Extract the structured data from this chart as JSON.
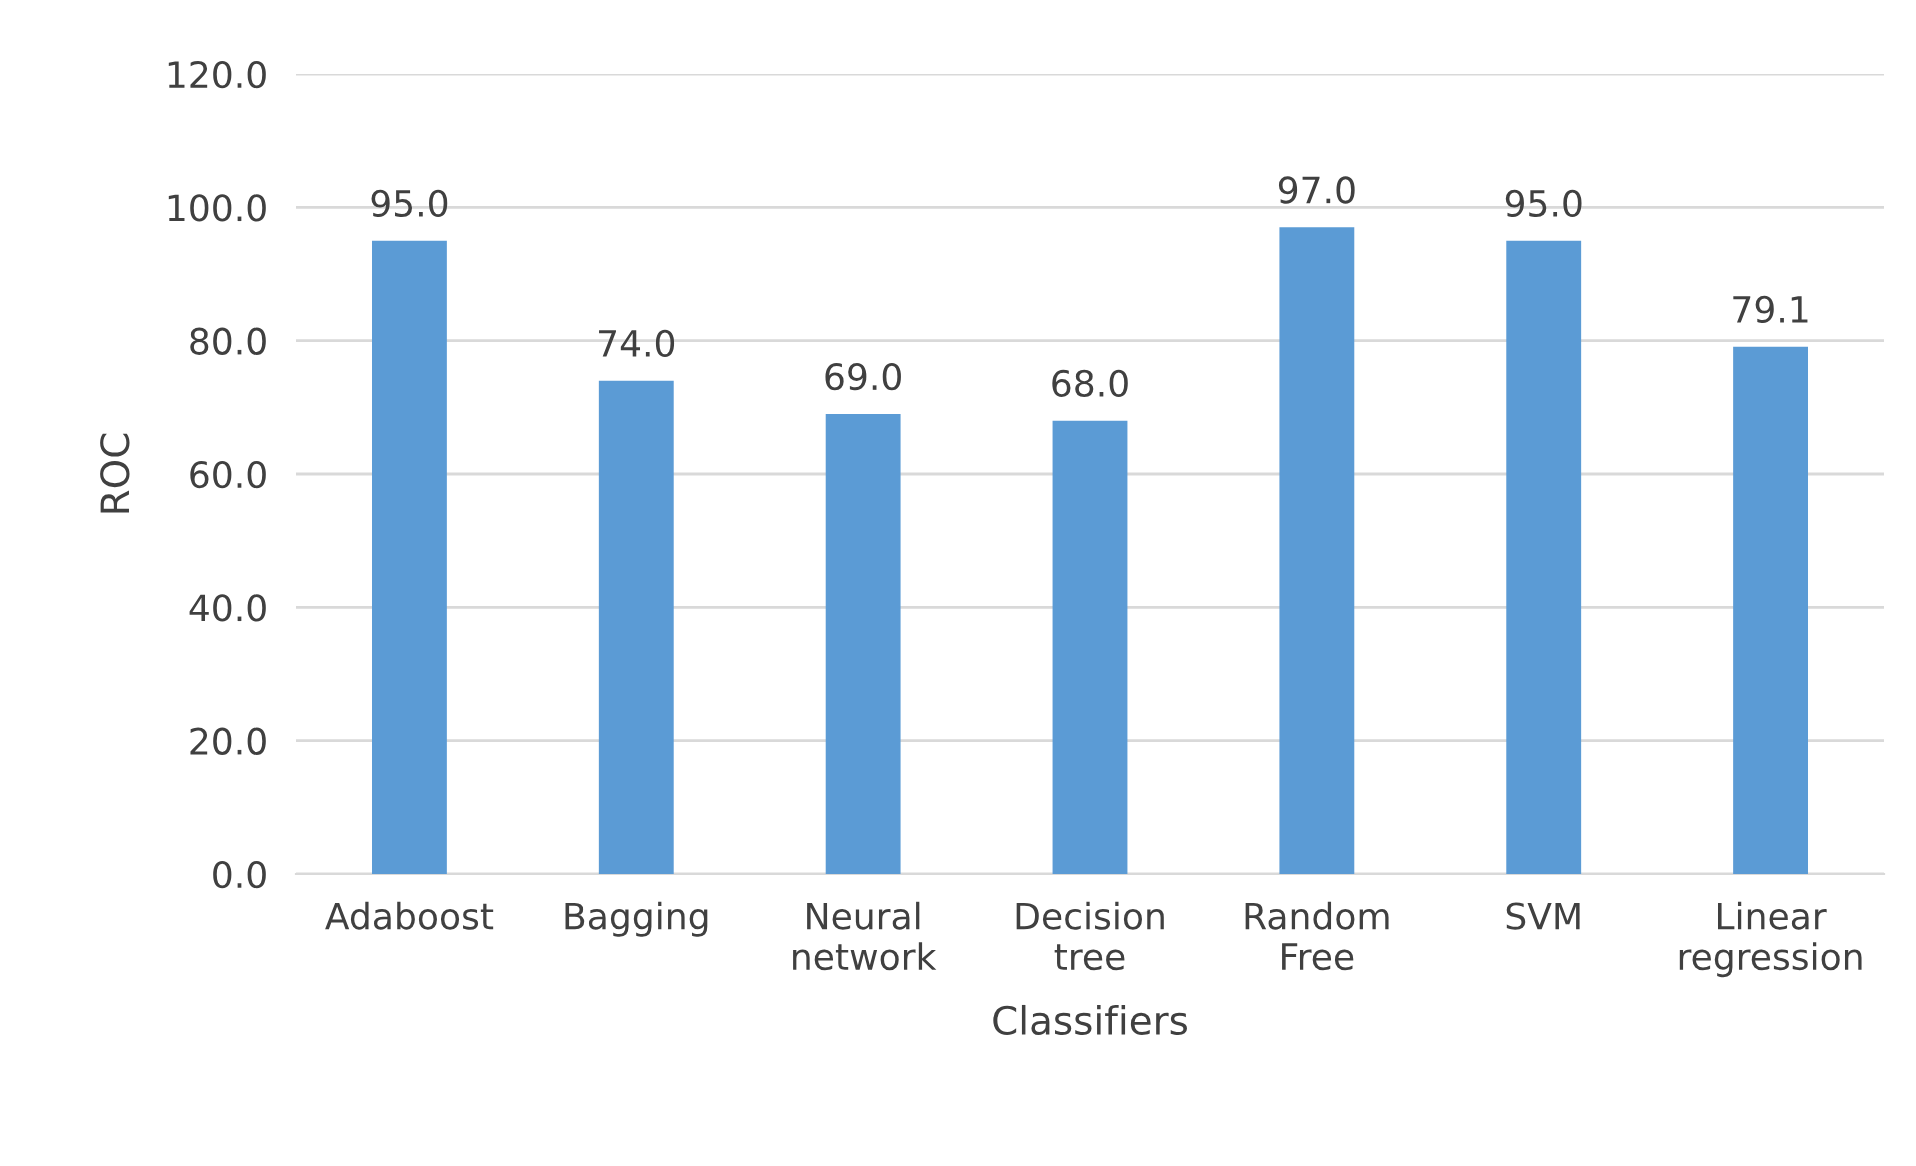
{
  "chart_data": {
    "type": "bar",
    "xlabel": "Classifiers",
    "ylabel": "ROC",
    "categories": [
      "Adaboost",
      "Bagging",
      "Neural\nnetwork",
      "Decision\ntree",
      "Random\nFree",
      "SVM",
      "Linear\nregression"
    ],
    "values": [
      95.0,
      74.0,
      69.0,
      68.0,
      97.0,
      95.0,
      79.1
    ],
    "value_labels": [
      "95.0",
      "74.0",
      "69.0",
      "68.0",
      "97.0",
      "95.0",
      "79.1"
    ],
    "color": "#5b9bd5",
    "ylim": [
      0,
      120
    ],
    "yticks": [
      {
        "value": 0,
        "label": "0.0"
      },
      {
        "value": 20,
        "label": "20.0"
      },
      {
        "value": 40,
        "label": "40.0"
      },
      {
        "value": 60,
        "label": "60.0"
      },
      {
        "value": 80,
        "label": "80.0"
      },
      {
        "value": 100,
        "label": "100.0"
      },
      {
        "value": 120,
        "label": "120.0"
      }
    ],
    "grid": "y"
  }
}
